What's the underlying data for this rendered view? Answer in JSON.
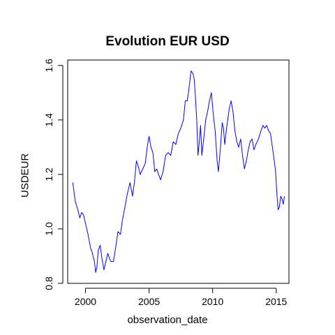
{
  "chart_data": {
    "type": "line",
    "title": "Evolution EUR USD",
    "xlabel": "observation_date",
    "ylabel": "USDEUR",
    "xlim": [
      1998.6,
      2016.0
    ],
    "ylim": [
      0.8,
      1.62
    ],
    "x_ticks": [
      2000,
      2005,
      2010,
      2015
    ],
    "y_ticks": [
      0.8,
      1.0,
      1.2,
      1.4,
      1.6
    ],
    "grid": false,
    "series": [
      {
        "color": "#0000ff",
        "points": [
          [
            1999.0,
            1.17
          ],
          [
            1999.2,
            1.1
          ],
          [
            1999.4,
            1.07
          ],
          [
            1999.55,
            1.04
          ],
          [
            1999.7,
            1.06
          ],
          [
            1999.85,
            1.05
          ],
          [
            2000.0,
            1.02
          ],
          [
            2000.2,
            0.98
          ],
          [
            2000.4,
            0.93
          ],
          [
            2000.55,
            0.91
          ],
          [
            2000.7,
            0.88
          ],
          [
            2000.8,
            0.84
          ],
          [
            2000.9,
            0.86
          ],
          [
            2001.0,
            0.92
          ],
          [
            2001.15,
            0.94
          ],
          [
            2001.3,
            0.89
          ],
          [
            2001.45,
            0.85
          ],
          [
            2001.6,
            0.88
          ],
          [
            2001.75,
            0.91
          ],
          [
            2001.9,
            0.89
          ],
          [
            2002.0,
            0.88
          ],
          [
            2002.2,
            0.88
          ],
          [
            2002.4,
            0.94
          ],
          [
            2002.55,
            0.99
          ],
          [
            2002.75,
            0.98
          ],
          [
            2002.9,
            1.03
          ],
          [
            2003.1,
            1.08
          ],
          [
            2003.3,
            1.13
          ],
          [
            2003.5,
            1.17
          ],
          [
            2003.7,
            1.12
          ],
          [
            2003.85,
            1.17
          ],
          [
            2004.0,
            1.25
          ],
          [
            2004.15,
            1.23
          ],
          [
            2004.3,
            1.2
          ],
          [
            2004.5,
            1.22
          ],
          [
            2004.7,
            1.24
          ],
          [
            2004.85,
            1.3
          ],
          [
            2005.0,
            1.34
          ],
          [
            2005.15,
            1.3
          ],
          [
            2005.3,
            1.28
          ],
          [
            2005.45,
            1.21
          ],
          [
            2005.6,
            1.22
          ],
          [
            2005.75,
            1.2
          ],
          [
            2005.9,
            1.18
          ],
          [
            2006.1,
            1.21
          ],
          [
            2006.3,
            1.27
          ],
          [
            2006.5,
            1.28
          ],
          [
            2006.7,
            1.27
          ],
          [
            2006.9,
            1.32
          ],
          [
            2007.1,
            1.31
          ],
          [
            2007.3,
            1.35
          ],
          [
            2007.5,
            1.37
          ],
          [
            2007.7,
            1.4
          ],
          [
            2007.85,
            1.47
          ],
          [
            2008.0,
            1.47
          ],
          [
            2008.15,
            1.52
          ],
          [
            2008.3,
            1.58
          ],
          [
            2008.45,
            1.57
          ],
          [
            2008.55,
            1.55
          ],
          [
            2008.65,
            1.48
          ],
          [
            2008.75,
            1.4
          ],
          [
            2008.85,
            1.27
          ],
          [
            2008.95,
            1.32
          ],
          [
            2009.05,
            1.38
          ],
          [
            2009.15,
            1.27
          ],
          [
            2009.3,
            1.33
          ],
          [
            2009.45,
            1.4
          ],
          [
            2009.6,
            1.43
          ],
          [
            2009.75,
            1.47
          ],
          [
            2009.9,
            1.5
          ],
          [
            2010.05,
            1.42
          ],
          [
            2010.2,
            1.36
          ],
          [
            2010.35,
            1.25
          ],
          [
            2010.45,
            1.21
          ],
          [
            2010.6,
            1.29
          ],
          [
            2010.75,
            1.39
          ],
          [
            2010.85,
            1.37
          ],
          [
            2010.95,
            1.31
          ],
          [
            2011.1,
            1.37
          ],
          [
            2011.3,
            1.44
          ],
          [
            2011.45,
            1.47
          ],
          [
            2011.6,
            1.43
          ],
          [
            2011.75,
            1.36
          ],
          [
            2011.9,
            1.32
          ],
          [
            2012.05,
            1.3
          ],
          [
            2012.2,
            1.33
          ],
          [
            2012.35,
            1.27
          ],
          [
            2012.5,
            1.22
          ],
          [
            2012.65,
            1.25
          ],
          [
            2012.8,
            1.29
          ],
          [
            2012.95,
            1.32
          ],
          [
            2013.1,
            1.33
          ],
          [
            2013.25,
            1.29
          ],
          [
            2013.4,
            1.31
          ],
          [
            2013.6,
            1.33
          ],
          [
            2013.8,
            1.36
          ],
          [
            2013.95,
            1.38
          ],
          [
            2014.1,
            1.37
          ],
          [
            2014.25,
            1.38
          ],
          [
            2014.4,
            1.36
          ],
          [
            2014.55,
            1.35
          ],
          [
            2014.7,
            1.3
          ],
          [
            2014.85,
            1.25
          ],
          [
            2014.95,
            1.21
          ],
          [
            2015.05,
            1.13
          ],
          [
            2015.15,
            1.07
          ],
          [
            2015.25,
            1.08
          ],
          [
            2015.35,
            1.12
          ],
          [
            2015.45,
            1.11
          ],
          [
            2015.55,
            1.09
          ],
          [
            2015.65,
            1.12
          ]
        ]
      }
    ]
  }
}
